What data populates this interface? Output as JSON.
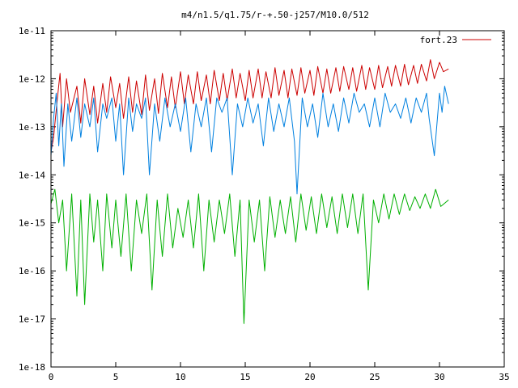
{
  "chart_data": {
    "type": "line",
    "title": "m4/n1.5/q1.75/r-+.50-j257/M10.0/512",
    "xlabel": "",
    "ylabel": "",
    "xlim": [
      0,
      35
    ],
    "ylim": [
      1e-18,
      1e-11
    ],
    "y_scale": "log",
    "grid": false,
    "legend_position": "top-right",
    "x_ticks": [
      "0",
      "5",
      "10",
      "15",
      "20",
      "25",
      "30",
      "35"
    ],
    "y_ticks": [
      "1e-11",
      "1e-12",
      "1e-13",
      "1e-14",
      "1e-15",
      "1e-16",
      "1e-17",
      "1e-18"
    ],
    "series": [
      {
        "name": "fort.23",
        "color": "#cc0000",
        "x": [
          0,
          0.2,
          0.45,
          0.7,
          0.9,
          1.2,
          1.5,
          2.0,
          2.3,
          2.6,
          3.0,
          3.3,
          3.6,
          4.0,
          4.3,
          4.6,
          5.0,
          5.3,
          5.6,
          6.0,
          6.3,
          6.6,
          7.0,
          7.3,
          7.6,
          8.0,
          8.3,
          8.6,
          9.0,
          9.3,
          9.6,
          10.0,
          10.3,
          10.6,
          11.0,
          11.3,
          11.6,
          12.0,
          12.3,
          12.6,
          13.0,
          13.3,
          13.6,
          14.0,
          14.3,
          14.6,
          15.0,
          15.3,
          15.6,
          16.0,
          16.3,
          16.6,
          17.0,
          17.3,
          17.6,
          18.0,
          18.3,
          18.6,
          19.0,
          19.3,
          19.6,
          20.0,
          20.3,
          20.6,
          21.0,
          21.3,
          21.6,
          22.0,
          22.3,
          22.6,
          23.0,
          23.3,
          23.6,
          24.0,
          24.3,
          24.6,
          25.0,
          25.3,
          25.6,
          26.0,
          26.3,
          26.6,
          27.0,
          27.3,
          27.6,
          28.0,
          28.3,
          28.6,
          29.0,
          29.3,
          29.6,
          30.0,
          30.3,
          30.7
        ],
        "values": [
          3e-14,
          6e-14,
          3e-13,
          1.3e-12,
          1e-13,
          1e-12,
          2e-13,
          7e-13,
          1.2e-13,
          1e-12,
          1.8e-13,
          7e-13,
          1.2e-13,
          8e-13,
          2e-13,
          1.1e-12,
          2.5e-13,
          8e-13,
          1.5e-13,
          1.1e-12,
          2e-13,
          9e-13,
          1.8e-13,
          1.2e-12,
          2.2e-13,
          1e-12,
          1.9e-13,
          1.3e-12,
          2.5e-13,
          1.1e-12,
          2.5e-13,
          1.4e-12,
          3e-13,
          1.2e-12,
          3e-13,
          1.4e-12,
          3.5e-13,
          1.2e-12,
          3e-13,
          1.5e-12,
          3.5e-13,
          1.3e-12,
          3.5e-13,
          1.6e-12,
          4e-13,
          1.3e-12,
          3.5e-13,
          1.5e-12,
          4e-13,
          1.6e-12,
          4e-13,
          1.4e-12,
          4e-13,
          1.7e-12,
          4.5e-13,
          1.5e-12,
          4e-13,
          1.6e-12,
          4.5e-13,
          1.7e-12,
          5e-13,
          1.5e-12,
          4.5e-13,
          1.8e-12,
          5e-13,
          1.6e-12,
          5e-13,
          1.7e-12,
          5.5e-13,
          1.8e-12,
          6e-13,
          1.7e-12,
          5.5e-13,
          1.9e-12,
          6e-13,
          1.7e-12,
          6e-13,
          1.9e-12,
          6.5e-13,
          1.8e-12,
          7e-13,
          1.9e-12,
          7e-13,
          2e-12,
          7.5e-13,
          1.9e-12,
          8e-13,
          2e-12,
          9e-13,
          2.5e-12,
          1e-12,
          2.2e-12,
          1.4e-12,
          1.6e-12
        ]
      },
      {
        "name": "",
        "color": "#0080e0",
        "x": [
          0,
          0.2,
          0.4,
          0.6,
          0.8,
          1.0,
          1.3,
          1.6,
          2.0,
          2.3,
          2.6,
          3.0,
          3.3,
          3.6,
          4.0,
          4.3,
          4.7,
          5.0,
          5.3,
          5.6,
          6.0,
          6.3,
          6.6,
          7.0,
          7.3,
          7.6,
          8.0,
          8.4,
          8.8,
          9.2,
          9.6,
          10.0,
          10.4,
          10.8,
          11.2,
          11.6,
          12.0,
          12.4,
          12.8,
          13.2,
          13.6,
          14.0,
          14.4,
          14.8,
          15.2,
          15.6,
          16.0,
          16.4,
          16.8,
          17.2,
          17.6,
          18.0,
          18.4,
          18.8,
          19.0,
          19.4,
          19.8,
          20.2,
          20.6,
          21.0,
          21.4,
          21.8,
          22.2,
          22.6,
          23.0,
          23.4,
          23.8,
          24.2,
          24.6,
          25.0,
          25.4,
          25.8,
          26.2,
          26.6,
          27.0,
          27.4,
          27.8,
          28.2,
          28.6,
          29.0,
          29.2,
          29.6,
          30.0,
          30.2,
          30.4,
          30.7
        ],
        "values": [
          2.5e-14,
          1.5e-13,
          5e-13,
          4e-14,
          3e-13,
          1.5e-14,
          3e-13,
          5e-14,
          4e-13,
          6e-14,
          3e-13,
          1e-13,
          4e-13,
          3e-14,
          3e-13,
          1.5e-13,
          4e-13,
          5e-14,
          3e-13,
          1e-14,
          4e-13,
          8e-14,
          3e-13,
          1.5e-13,
          4e-13,
          1e-14,
          3e-13,
          5e-14,
          4e-13,
          1e-13,
          3e-13,
          8e-14,
          4e-13,
          3e-14,
          3e-13,
          1e-13,
          4e-13,
          3e-14,
          4e-13,
          2e-13,
          4e-13,
          1e-14,
          3e-13,
          1e-13,
          4e-13,
          1.2e-13,
          3e-13,
          4e-14,
          4e-13,
          8e-14,
          3e-13,
          1e-13,
          4e-13,
          5e-14,
          4e-15,
          4e-13,
          1e-13,
          3e-13,
          6e-14,
          5e-13,
          1e-13,
          3e-13,
          8e-14,
          4e-13,
          1.2e-13,
          5e-13,
          2e-13,
          3e-13,
          1e-13,
          4e-13,
          1e-13,
          5e-13,
          2e-13,
          3e-13,
          1.5e-13,
          4e-13,
          1.2e-13,
          4e-13,
          2e-13,
          5e-13,
          1.5e-13,
          2.5e-14,
          5e-13,
          2e-13,
          7e-13,
          3e-13
        ]
      },
      {
        "name": "",
        "color": "#00b000",
        "x": [
          0,
          0.3,
          0.6,
          0.9,
          1.2,
          1.6,
          2.0,
          2.3,
          2.6,
          3.0,
          3.3,
          3.6,
          4.0,
          4.3,
          4.7,
          5.0,
          5.4,
          5.8,
          6.2,
          6.6,
          7.0,
          7.4,
          7.8,
          8.2,
          8.6,
          9.0,
          9.4,
          9.8,
          10.2,
          10.6,
          11.0,
          11.4,
          11.8,
          12.2,
          12.6,
          13.0,
          13.4,
          13.8,
          14.2,
          14.6,
          14.9,
          15.3,
          15.7,
          16.1,
          16.5,
          16.9,
          17.3,
          17.7,
          18.1,
          18.5,
          18.9,
          19.3,
          19.7,
          20.1,
          20.5,
          20.9,
          21.3,
          21.7,
          22.1,
          22.5,
          22.9,
          23.3,
          23.7,
          24.1,
          24.5,
          24.9,
          25.3,
          25.7,
          26.1,
          26.5,
          26.9,
          27.3,
          27.7,
          28.1,
          28.5,
          28.9,
          29.3,
          29.7,
          30.1,
          30.7
        ],
        "values": [
          2.5e-15,
          5e-15,
          1e-15,
          3e-15,
          1e-16,
          4e-15,
          3e-17,
          3e-15,
          2e-17,
          4e-15,
          4e-16,
          3e-15,
          1e-16,
          4e-15,
          3e-16,
          3e-15,
          2e-16,
          4e-15,
          1e-16,
          3e-15,
          6e-16,
          4e-15,
          4e-17,
          3e-15,
          2e-16,
          4e-15,
          3e-16,
          2e-15,
          5e-16,
          3e-15,
          3e-16,
          4e-15,
          1e-16,
          3e-15,
          4e-16,
          3e-15,
          6e-16,
          4e-15,
          2e-16,
          3e-15,
          8e-18,
          3e-15,
          4e-16,
          3e-15,
          1e-16,
          3.5e-15,
          5e-16,
          3e-15,
          6e-16,
          3.5e-15,
          4e-16,
          4e-15,
          7e-16,
          3.5e-15,
          6e-16,
          4e-15,
          8e-16,
          3.5e-15,
          6e-16,
          4e-15,
          8e-16,
          4e-15,
          6e-16,
          4e-15,
          4e-17,
          3e-15,
          1e-15,
          4e-15,
          1.2e-15,
          4e-15,
          1.5e-15,
          4e-15,
          1.8e-15,
          3.5e-15,
          2e-15,
          4e-15,
          2e-15,
          5e-15,
          2.2e-15,
          3e-15
        ]
      }
    ]
  }
}
